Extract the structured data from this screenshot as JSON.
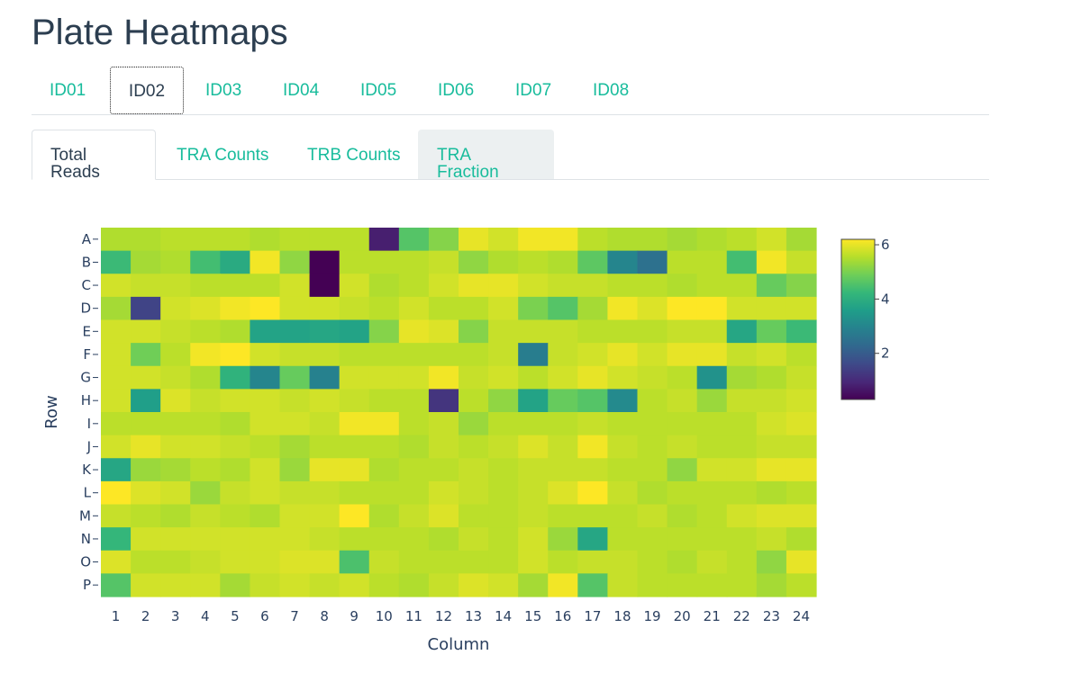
{
  "page": {
    "title": "Plate Heatmaps"
  },
  "sample_tabs": [
    "ID01",
    "ID02",
    "ID03",
    "ID04",
    "ID05",
    "ID06",
    "ID07",
    "ID08"
  ],
  "sample_tabs_active": "ID02",
  "metric_tabs": [
    "Total Reads",
    "TRA Counts",
    "TRB Counts",
    "TRA Fraction"
  ],
  "metric_tabs_active": "Total Reads",
  "colors": {
    "accent": "#18bc9c",
    "text": "#2c3e50",
    "border": "#dee2e6",
    "hover": "#ecf0f1"
  },
  "chart_data": {
    "type": "heatmap",
    "xlabel": "Column",
    "ylabel": "Row",
    "x": [
      1,
      2,
      3,
      4,
      5,
      6,
      7,
      8,
      9,
      10,
      11,
      12,
      13,
      14,
      15,
      16,
      17,
      18,
      19,
      20,
      21,
      22,
      23,
      24
    ],
    "y": [
      "A",
      "B",
      "C",
      "D",
      "E",
      "F",
      "G",
      "H",
      "I",
      "J",
      "K",
      "L",
      "M",
      "N",
      "O",
      "P"
    ],
    "colorscale": "Viridis",
    "zrange": [
      0.3,
      6.2
    ],
    "colorbar_ticks": [
      2,
      4,
      6
    ],
    "z": [
      [
        5.5,
        5.5,
        5.6,
        5.6,
        5.6,
        5.5,
        5.6,
        5.6,
        5.6,
        0.8,
        4.6,
        5.1,
        6.0,
        5.8,
        6.1,
        6.1,
        5.6,
        5.5,
        5.5,
        5.4,
        5.5,
        5.6,
        5.8,
        5.4
      ],
      [
        4.3,
        5.4,
        5.5,
        4.4,
        3.9,
        6.1,
        5.2,
        0.3,
        5.6,
        5.6,
        5.6,
        5.7,
        5.2,
        5.5,
        5.6,
        5.5,
        4.7,
        3.0,
        2.5,
        5.6,
        5.6,
        4.4,
        6.1,
        5.7
      ],
      [
        5.8,
        5.7,
        5.7,
        5.6,
        5.6,
        5.6,
        5.8,
        0.3,
        5.8,
        5.5,
        5.6,
        5.8,
        6.0,
        6.0,
        5.8,
        5.7,
        5.7,
        5.6,
        5.6,
        5.5,
        5.6,
        5.6,
        4.8,
        5.1
      ],
      [
        5.4,
        1.5,
        5.8,
        5.9,
        6.1,
        6.2,
        5.8,
        5.8,
        5.7,
        5.6,
        5.8,
        5.6,
        5.6,
        5.8,
        5.0,
        4.6,
        5.4,
        6.1,
        5.9,
        6.2,
        6.2,
        5.8,
        5.8,
        5.8
      ],
      [
        5.8,
        5.8,
        5.7,
        5.6,
        5.5,
        3.7,
        3.7,
        3.8,
        3.7,
        5.1,
        6.0,
        5.9,
        5.1,
        5.7,
        5.7,
        5.7,
        5.6,
        5.6,
        5.6,
        5.7,
        5.7,
        3.8,
        4.8,
        4.3
      ],
      [
        5.8,
        4.9,
        5.6,
        6.1,
        6.2,
        5.8,
        5.7,
        5.7,
        5.6,
        5.6,
        5.6,
        5.6,
        5.6,
        5.7,
        2.8,
        5.7,
        5.8,
        6.0,
        5.8,
        6.0,
        6.0,
        5.7,
        5.8,
        5.6
      ],
      [
        5.8,
        5.8,
        5.7,
        5.5,
        4.1,
        3.0,
        4.8,
        2.9,
        5.8,
        5.8,
        5.8,
        6.1,
        5.7,
        5.8,
        5.6,
        5.8,
        6.0,
        5.8,
        5.7,
        5.6,
        3.3,
        5.4,
        5.5,
        5.7
      ],
      [
        5.8,
        3.6,
        5.9,
        5.7,
        5.8,
        5.8,
        5.7,
        5.8,
        5.7,
        5.6,
        5.6,
        1.2,
        5.6,
        5.2,
        3.7,
        4.8,
        4.6,
        3.1,
        5.6,
        5.7,
        5.3,
        5.7,
        5.7,
        5.8
      ],
      [
        5.6,
        5.6,
        5.6,
        5.6,
        5.5,
        5.8,
        5.8,
        5.7,
        6.1,
        6.1,
        5.6,
        5.7,
        5.3,
        5.6,
        5.6,
        5.6,
        5.7,
        5.6,
        5.6,
        5.6,
        5.6,
        5.6,
        5.8,
        5.9
      ],
      [
        5.8,
        6.0,
        5.8,
        5.8,
        5.7,
        5.6,
        5.4,
        5.6,
        5.6,
        5.6,
        5.5,
        5.7,
        5.6,
        5.7,
        5.9,
        5.7,
        6.1,
        5.7,
        5.6,
        5.7,
        5.6,
        5.6,
        5.7,
        5.7
      ],
      [
        3.8,
        5.3,
        5.4,
        5.6,
        5.5,
        5.8,
        5.3,
        6.0,
        6.0,
        5.5,
        5.6,
        5.6,
        5.7,
        5.6,
        5.7,
        5.7,
        5.7,
        5.6,
        5.6,
        5.2,
        5.8,
        5.8,
        6.0,
        6.0
      ],
      [
        6.3,
        5.9,
        5.8,
        5.3,
        5.7,
        5.8,
        5.7,
        5.7,
        5.6,
        5.6,
        5.6,
        5.8,
        5.7,
        5.6,
        5.7,
        5.9,
        6.3,
        5.7,
        5.5,
        5.6,
        5.6,
        5.6,
        5.5,
        5.6
      ],
      [
        5.7,
        5.6,
        5.5,
        5.7,
        5.6,
        5.5,
        5.8,
        5.8,
        6.3,
        5.5,
        5.7,
        5.9,
        5.6,
        5.6,
        5.7,
        5.6,
        5.6,
        5.6,
        5.7,
        5.5,
        5.6,
        5.8,
        5.9,
        5.9
      ],
      [
        4.2,
        5.8,
        5.8,
        5.8,
        5.8,
        5.8,
        5.8,
        5.7,
        5.6,
        5.6,
        5.6,
        5.5,
        5.7,
        5.6,
        5.8,
        5.3,
        3.8,
        5.6,
        5.6,
        5.6,
        5.6,
        5.6,
        5.7,
        5.5
      ],
      [
        5.9,
        5.6,
        5.6,
        5.7,
        5.8,
        5.8,
        5.9,
        5.9,
        4.5,
        5.7,
        5.6,
        5.6,
        5.6,
        5.6,
        5.8,
        5.6,
        5.7,
        5.7,
        5.6,
        5.5,
        5.7,
        5.6,
        5.2,
        6.0
      ],
      [
        4.6,
        5.8,
        5.8,
        5.8,
        5.4,
        5.7,
        5.8,
        5.7,
        5.8,
        5.6,
        5.5,
        5.7,
        5.9,
        5.8,
        5.4,
        6.1,
        4.6,
        5.7,
        5.6,
        5.6,
        5.6,
        5.6,
        5.4,
        5.6
      ]
    ]
  }
}
